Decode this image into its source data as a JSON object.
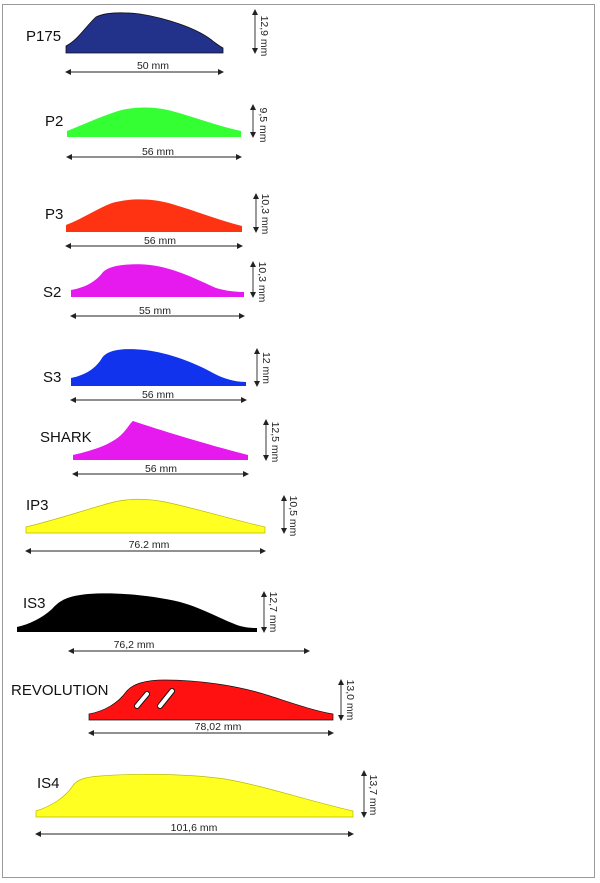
{
  "vanes": [
    {
      "name": "P175",
      "color": "#22318a",
      "length_label": "50 mm",
      "height_label": "12,9 mm"
    },
    {
      "name": "P2",
      "color": "#33ff33",
      "length_label": "56 mm",
      "height_label": "9,5 mm"
    },
    {
      "name": "P3",
      "color": "#ff3311",
      "length_label": "56 mm",
      "height_label": "10,3 mm"
    },
    {
      "name": "S2",
      "color": "#e619ee",
      "length_label": "55 mm",
      "height_label": "10,3 mm"
    },
    {
      "name": "S3",
      "color": "#1133ee",
      "length_label": "56 mm",
      "height_label": "12 mm"
    },
    {
      "name": "SHARK",
      "color": "#e619ee",
      "length_label": "56 mm",
      "height_label": "12,5 mm"
    },
    {
      "name": "IP3",
      "color": "#ffff22",
      "length_label": "76.2 mm",
      "height_label": "10,5 mm"
    },
    {
      "name": "IS3",
      "color": "#000000",
      "length_label": "76,2 mm",
      "height_label": "12,7 mm"
    },
    {
      "name": "REVOLUTION",
      "color": "#ff1111",
      "length_label": "78,02 mm",
      "height_label": "13,0 mm"
    },
    {
      "name": "IS4",
      "color": "#ffff22",
      "length_label": "101,6 mm",
      "height_label": "13,7 mm"
    }
  ]
}
